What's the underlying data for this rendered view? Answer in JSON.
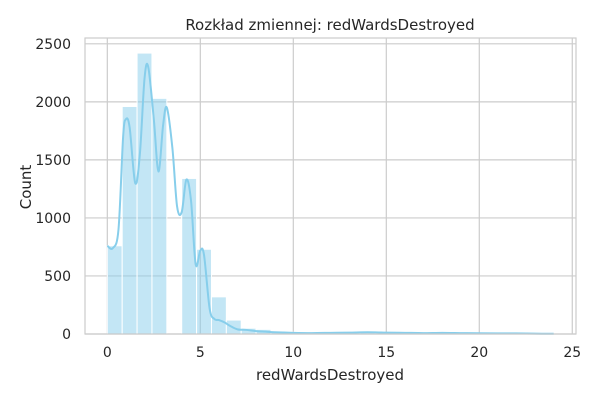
{
  "chart_data": {
    "type": "bar",
    "title": "Rozkład zmiennej: redWardsDestroyed",
    "xlabel": "redWardsDestroyed",
    "ylabel": "Count",
    "xlim": [
      -1.2,
      25.2
    ],
    "ylim": [
      0,
      2550
    ],
    "xticks": [
      0,
      5,
      10,
      15,
      20,
      25
    ],
    "yticks": [
      0,
      500,
      1000,
      1500,
      2000,
      2500
    ],
    "grid": true,
    "bar_color": "#87ceeb",
    "kde_color": "#87ceeb",
    "bin_width": 0.8,
    "bins": [
      {
        "x": 0.0,
        "count": 760
      },
      {
        "x": 0.8,
        "count": 1960
      },
      {
        "x": 1.6,
        "count": 2420
      },
      {
        "x": 2.4,
        "count": 2030
      },
      {
        "x": 3.2,
        "count": 0
      },
      {
        "x": 4.0,
        "count": 1340
      },
      {
        "x": 4.8,
        "count": 730
      },
      {
        "x": 5.6,
        "count": 320
      },
      {
        "x": 6.4,
        "count": 120
      },
      {
        "x": 7.2,
        "count": 50
      },
      {
        "x": 8.0,
        "count": 40
      },
      {
        "x": 8.8,
        "count": 25
      },
      {
        "x": 9.6,
        "count": 15
      },
      {
        "x": 10.4,
        "count": 10
      },
      {
        "x": 11.2,
        "count": 8
      },
      {
        "x": 12.0,
        "count": 8
      },
      {
        "x": 12.8,
        "count": 10
      },
      {
        "x": 13.6,
        "count": 12
      },
      {
        "x": 14.4,
        "count": 10
      },
      {
        "x": 15.2,
        "count": 8
      },
      {
        "x": 16.0,
        "count": 6
      },
      {
        "x": 16.8,
        "count": 8
      },
      {
        "x": 17.6,
        "count": 10
      },
      {
        "x": 18.4,
        "count": 8
      },
      {
        "x": 19.2,
        "count": 6
      },
      {
        "x": 20.0,
        "count": 5
      },
      {
        "x": 20.8,
        "count": 4
      },
      {
        "x": 21.6,
        "count": 4
      },
      {
        "x": 22.4,
        "count": 3
      },
      {
        "x": 23.2,
        "count": 2
      }
    ],
    "kde": {
      "x": [
        0,
        0.3,
        0.6,
        0.85,
        1.0,
        1.2,
        1.5,
        1.75,
        2.0,
        2.2,
        2.5,
        2.75,
        3.0,
        3.2,
        3.5,
        3.75,
        4.0,
        4.25,
        4.5,
        4.75,
        5.0,
        5.2,
        5.5,
        5.75,
        6.0,
        6.3,
        6.6,
        7.0,
        7.5,
        8.0,
        8.5,
        9.0,
        10,
        11,
        12,
        13,
        14,
        15,
        16,
        17,
        18,
        19,
        20,
        21,
        22,
        23,
        24
      ],
      "y": [
        760,
        740,
        900,
        1700,
        1850,
        1780,
        1300,
        1550,
        2200,
        2300,
        1850,
        1400,
        1800,
        1950,
        1600,
        1100,
        1050,
        1330,
        1150,
        600,
        720,
        680,
        220,
        130,
        120,
        100,
        70,
        40,
        35,
        25,
        20,
        15,
        10,
        8,
        10,
        12,
        15,
        12,
        10,
        8,
        10,
        8,
        6,
        5,
        5,
        3,
        2
      ]
    }
  }
}
